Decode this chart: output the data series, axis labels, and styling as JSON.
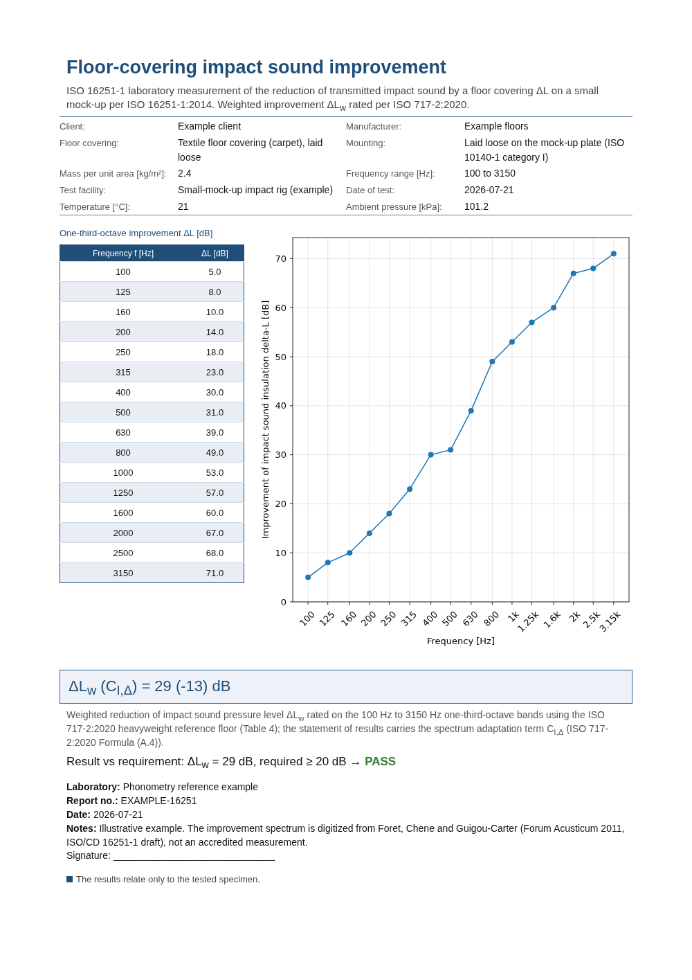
{
  "chart_data": [
    {
      "type": "line",
      "title": "Floor-covering impact sound improvement",
      "subtitle": "ISO 16251-1 laboratory measurement of the reduction of transmitted impact sound by a floor covering ΔL on a small mock-up per ISO 16251-1:2014. Weighted improvement ΔL$_{w}$ rated per ISO 717-2:2020.",
      "xlabel": "Frequency [Hz]",
      "ylabel": "Improvement of impact sound insulation delta-L [dB]",
      "x": [
        100,
        125,
        160,
        200,
        250,
        315,
        400,
        500,
        630,
        800,
        1000,
        1250,
        1600,
        2000,
        2500,
        3150
      ],
      "series": [
        {
          "color": "#1f77b4",
          "values": [
            5,
            8,
            10,
            14,
            18,
            23,
            30,
            31,
            39,
            49,
            53,
            57,
            60,
            67,
            68,
            71
          ]
        }
      ],
      "log": "x",
      "xlim": [
        84.1,
        3746
      ],
      "ylim": [
        0,
        74.3
      ],
      "xticks": [
        100,
        125,
        160,
        200,
        250,
        315,
        400,
        500,
        630,
        800,
        {
          "value": 1000,
          "label": "1k"
        },
        {
          "value": 1250,
          "label": "1.25k"
        },
        {
          "value": 1600,
          "label": "1.6k"
        },
        {
          "value": 2000,
          "label": "2k"
        },
        {
          "value": 2500,
          "label": "2.5k"
        },
        {
          "value": 3150,
          "label": "3.15k"
        }
      ],
      "yticks": [
        0,
        10,
        20,
        30,
        40,
        50,
        60,
        70
      ],
      "grid": true,
      "marker": "circle",
      "line_style": "solid",
      "annotations": [
        "Client:",
        "Example client",
        "Manufacturer:",
        "Example floors",
        "Floor covering:",
        "Textile floor covering (carpet), laid loose",
        "Mounting:",
        "Laid loose on the mock-up plate (ISO 10140-1 category I)",
        "Mass per unit area [kg/m²]:",
        "2.4",
        "Frequency range [Hz]:",
        "100 to 3150",
        "Test facility:",
        "Small-mock-up impact rig (example)",
        "Date of test:",
        "2026-07-21",
        "Temperature [°C]:",
        "21",
        "Ambient pressure [kPa]:",
        "101.2",
        "ΔL$_{w}$ (C$_{I,Δ}$) = 29 (-13) dB",
        "Weighted reduction of impact sound pressure level ΔL$_{w}$ rated on the 100 Hz to 3150 Hz one-third-octave bands using the ISO 717-2:2020 heavyweight reference floor (Table 4); the statement of results carries the spectrum adaptation term C$_{I,Δ}$ (ISO 717-2:2020 Formula (A.4)).",
        "Result vs requirement: ΔL$_{w}$ = 29 dB, required ≥ 20 dB →",
        "PASS",
        "Laboratory: Phonometry reference example",
        "Report no.: EXAMPLE-16251",
        "Date: 2026-07-21",
        "Notes: Illustrative example. The improvement spectrum is digitized from Foret, Chene and Guigou-Carter (Forum Acusticum 2011, ISO/CD 16251-1 draft), not an accredited measurement.",
        "Signature: ______________________________",
        "The results relate only to the tested specimen."
      ]
    },
    {
      "type": "other",
      "title": "One-third-octave improvement ΔL [dB]",
      "annotations": [
        "Frequency f [Hz]",
        "ΔL [dB]",
        "100",
        "5.0",
        "125",
        "8.0",
        "160",
        "10.0",
        "200",
        "14.0",
        "250",
        "18.0",
        "315",
        "23.0",
        "400",
        "30.0",
        "500",
        "31.0",
        "630",
        "39.0",
        "800",
        "49.0",
        "1000",
        "53.0",
        "1250",
        "57.0",
        "1600",
        "60.0",
        "2000",
        "67.0",
        "2500",
        "68.0",
        "3150",
        "71.0"
      ]
    }
  ]
}
